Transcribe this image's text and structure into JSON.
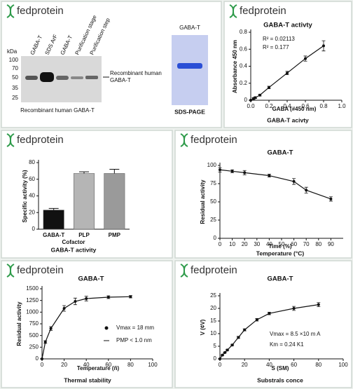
{
  "brand": "fedprotein",
  "blot": {
    "kda_label": "kDa",
    "markers": [
      "100",
      "70",
      "50",
      "35",
      "25"
    ],
    "lanes": [
      "GABA-T",
      "SDS ArF",
      "GABA-T",
      "Purification stage",
      "Purification step"
    ],
    "arrow_label": "Recombinant human GABA-T",
    "caption": "Recombinant human GABA-T",
    "gel_label": "GABA-T",
    "gel_caption": "SDS-PAGE"
  },
  "chart_data": [
    {
      "type": "line",
      "title": "GABA-T activty",
      "x_label": "GABA (#450 nm)",
      "y_label": "Absorbance 450 nm",
      "caption": "GABA-T acivty",
      "annotations": [
        "R² = 0.02113",
        "R² = 0.177"
      ],
      "x": [
        0,
        0.03,
        0.05,
        0.1,
        0.2,
        0.4,
        0.6,
        0.8
      ],
      "series": [
        {
          "color": "#111111",
          "values": [
            0,
            0.02,
            0.03,
            0.06,
            0.15,
            0.32,
            0.49,
            0.64
          ],
          "errors": [
            0,
            0.01,
            0.01,
            0.01,
            0.015,
            0.02,
            0.03,
            0.06
          ]
        }
      ],
      "xlim": [
        0,
        1.0
      ],
      "xticks": [
        {
          "value": 0,
          "label": "0.0"
        },
        0.2,
        0.4,
        0.6,
        0.8,
        {
          "value": 1.0,
          "label": "1.0"
        }
      ],
      "ylim": [
        0,
        0.8
      ],
      "yticks": [
        0,
        0.2,
        0.4,
        0.6,
        0.8
      ]
    },
    {
      "type": "bar",
      "caption": "GABA-T activity",
      "x_label": "Cofactor",
      "y_label": "Specific activity (%)",
      "categories": [
        "GABA-T",
        "PLP",
        "PMP"
      ],
      "values": [
        23,
        67,
        67
      ],
      "errors": [
        2,
        2,
        5
      ],
      "colors": [
        "#111111",
        "#b5b5b5",
        "#9a9a9a"
      ],
      "ylim": [
        0,
        80
      ],
      "yticks": [
        0,
        20,
        40,
        60,
        80
      ]
    },
    {
      "type": "line",
      "title": "GABA-T",
      "x_label": "Time (%)",
      "y_label": "Residual activity",
      "caption": "Temperature (°C)",
      "x": [
        0,
        10,
        20,
        40,
        60,
        70,
        90
      ],
      "series": [
        {
          "color": "#111111",
          "values": [
            94,
            92,
            90,
            86,
            78,
            66,
            54
          ],
          "errors": [
            3,
            2,
            3,
            2,
            4,
            4,
            3
          ]
        }
      ],
      "xlim": [
        0,
        100
      ],
      "xticks": [
        0,
        10,
        20,
        30,
        40,
        50,
        60,
        70,
        80,
        90
      ],
      "ylim": [
        0,
        100
      ],
      "yticks": [
        0,
        25,
        50,
        75,
        100
      ]
    },
    {
      "type": "line",
      "title": "GABA-T",
      "x_label": "Temperature (ñ)",
      "y_label": "Residual activity",
      "caption": "Thermal stability",
      "annotations": [
        "Vmax = 18 mm",
        "PMP < 1.0 nm"
      ],
      "x": [
        0,
        3,
        8,
        20,
        30,
        40,
        60,
        80
      ],
      "series": [
        {
          "color": "#111111",
          "values": [
            0,
            360,
            650,
            1080,
            1230,
            1290,
            1320,
            1330
          ],
          "errors": [
            0,
            30,
            40,
            60,
            70,
            50,
            30,
            25
          ]
        }
      ],
      "xlim": [
        0,
        100
      ],
      "xticks": [
        0,
        20,
        40,
        60,
        80,
        100
      ],
      "ylim": [
        0,
        1500
      ],
      "yticks": [
        0,
        250,
        500,
        750,
        1000,
        1250,
        1500
      ]
    },
    {
      "type": "line",
      "title": "GABA-T",
      "x_label": "S (SM)",
      "y_label": "V (¢V)",
      "caption": "Substrals conce",
      "annotations": [
        "Vmax = 8.5 ×10 m A",
        "Km = 0.24 K1"
      ],
      "x": [
        0,
        2,
        4,
        6,
        10,
        15,
        20,
        30,
        40,
        60,
        80
      ],
      "series": [
        {
          "color": "#111111",
          "values": [
            0,
            1.5,
            2.5,
            3.5,
            5.5,
            8.5,
            11.5,
            15.5,
            18,
            20,
            21.5
          ],
          "errors": [
            0,
            0.2,
            0.2,
            0.3,
            0.3,
            0.4,
            0.4,
            0.5,
            0.5,
            0.8,
            0.8
          ]
        }
      ],
      "xlim": [
        0,
        100
      ],
      "xticks": [
        0,
        20,
        40,
        60,
        80,
        100
      ],
      "ylim": [
        0,
        25
      ],
      "yticks": [
        0,
        5,
        10,
        15,
        20,
        25
      ]
    }
  ]
}
